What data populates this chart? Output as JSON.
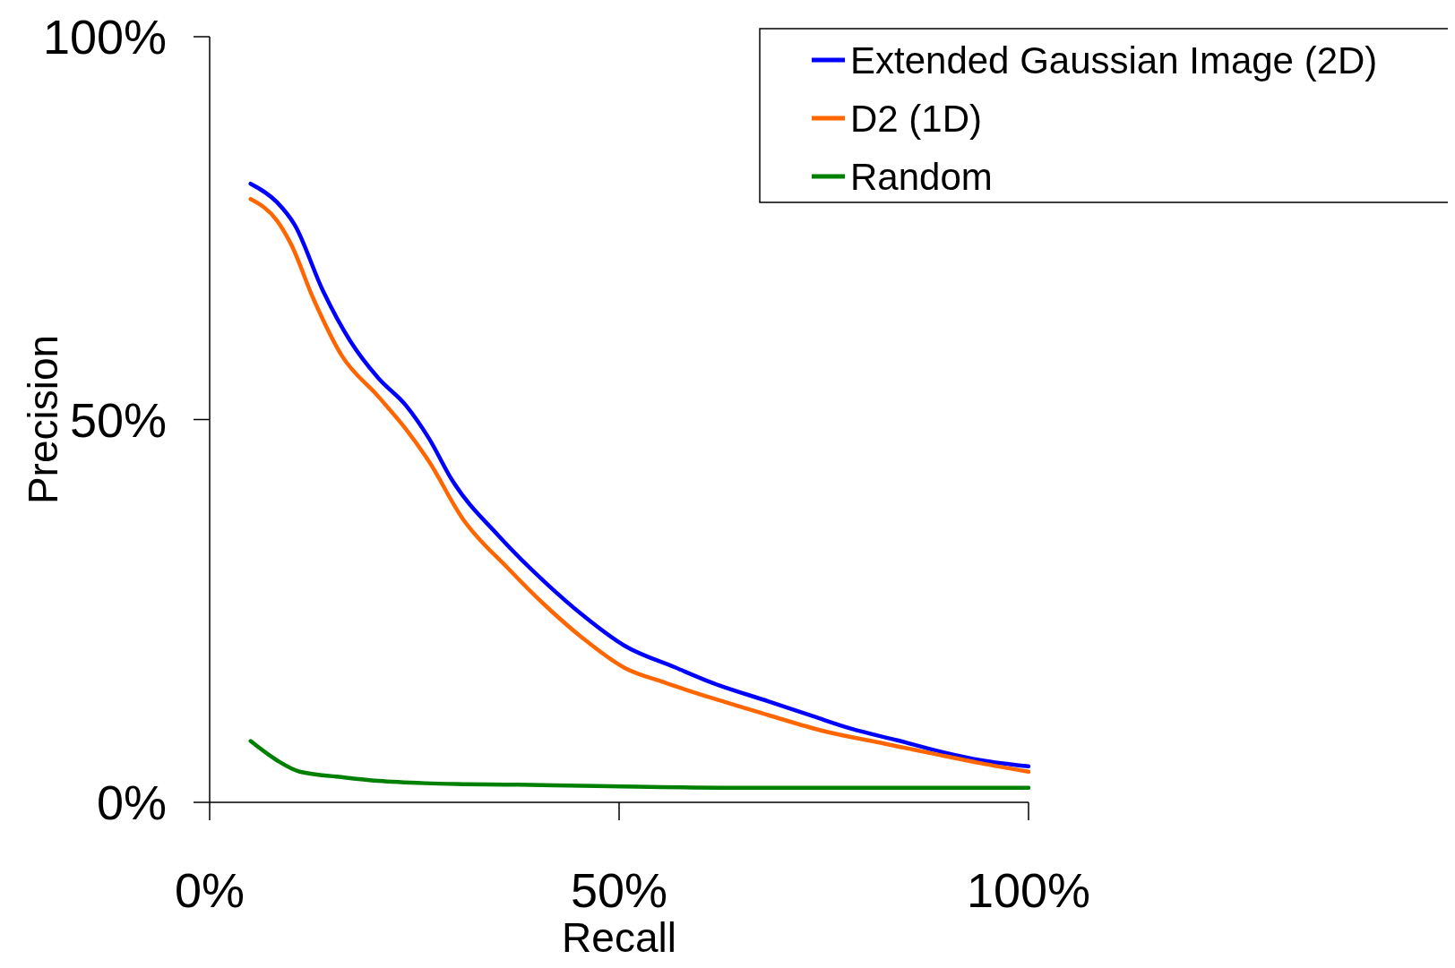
{
  "chart_data": {
    "type": "line",
    "xlabel": "Recall",
    "ylabel": "Precision",
    "xlim": [
      0,
      100
    ],
    "ylim": [
      0,
      100
    ],
    "xticks": [
      {
        "value": 0,
        "label": "0%"
      },
      {
        "value": 50,
        "label": "50%"
      },
      {
        "value": 100,
        "label": "100%"
      }
    ],
    "yticks": [
      {
        "value": 0,
        "label": "0%"
      },
      {
        "value": 50,
        "label": "50%"
      },
      {
        "value": 100,
        "label": "100%"
      }
    ],
    "grid": false,
    "legend": "top right",
    "marker": "none",
    "line_style": "solid",
    "series": [
      {
        "name": "Extended Gaussian Image (2D)",
        "color": "#0000ff",
        "x": [
          5,
          8.2,
          10.4,
          13.8,
          17.2,
          20.6,
          24,
          26.8,
          29.6,
          35.3,
          41,
          45.5,
          50.6,
          56.9,
          61.4,
          68.2,
          73.8,
          78.4,
          84,
          89.7,
          94.2,
          100
        ],
        "values": [
          80.8,
          78.4,
          75.4,
          66.9,
          60.2,
          55.4,
          51.8,
          47.5,
          42.1,
          34.8,
          28.7,
          24.5,
          20.5,
          17.6,
          15.6,
          13.2,
          11.2,
          9.6,
          8.1,
          6.5,
          5.5,
          4.7
        ]
      },
      {
        "name": "D2 (1D)",
        "color": "#ff6600",
        "x": [
          5,
          8.2,
          9.9,
          12.7,
          16.1,
          20.6,
          24,
          26.8,
          30.8,
          36.5,
          41,
          45.5,
          50.6,
          55.7,
          61.4,
          68.2,
          75,
          81.8,
          88.6,
          94.2,
          100
        ],
        "values": [
          78.8,
          76,
          73,
          65.7,
          58.4,
          53,
          48.7,
          44.5,
          37.2,
          30.5,
          25.7,
          21.5,
          17.6,
          15.6,
          13.6,
          11.4,
          9.3,
          7.8,
          6.3,
          5.1,
          4
        ]
      },
      {
        "name": "Random",
        "color": "#008000",
        "x": [
          5,
          8.2,
          11,
          16.1,
          20.6,
          26.3,
          37.6,
          48.9,
          65.9,
          100
        ],
        "values": [
          8,
          5.5,
          4,
          3.3,
          2.8,
          2.5,
          2.3,
          2.1,
          1.9,
          1.9
        ]
      }
    ]
  }
}
